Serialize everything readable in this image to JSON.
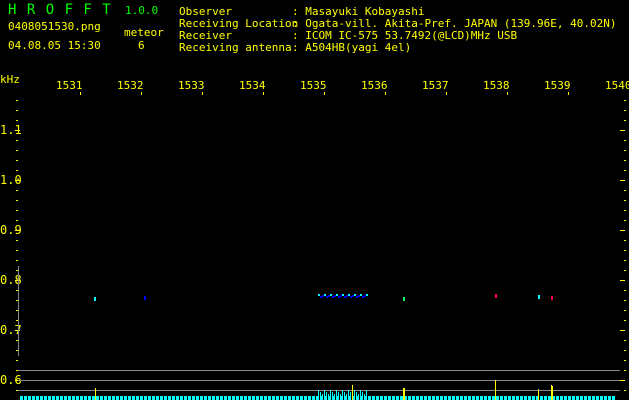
{
  "app": {
    "title": "H R O F F T",
    "version": "1.0.0"
  },
  "file": {
    "name": "0408051530.png",
    "datetime": "04.08.05 15:30",
    "meteor_label": "meteor",
    "meteor_count": "6"
  },
  "info": [
    {
      "label": "Observer",
      "value": ": Masayuki Kobayashi"
    },
    {
      "label": "Receiving Location",
      "value": ": Ogata-vill. Akita-Pref. JAPAN (139.96E, 40.02N)"
    },
    {
      "label": "Receiver",
      "value": ": ICOM IC-575 53.7492(@LCD)MHz USB"
    },
    {
      "label": "Receiving antenna",
      "value": ": A504HB(yagi 4el)"
    }
  ],
  "axes": {
    "x_unit": "kHz",
    "x_ticks": [
      "1531",
      "1532",
      "1533",
      "1534",
      "1535",
      "1536",
      "1537",
      "1538",
      "1539",
      "1540"
    ],
    "y_ticks": [
      "1.1",
      "1.0",
      "0.9",
      "0.8",
      "0.7",
      "0.6"
    ]
  },
  "colors": {
    "text": "#ffff00",
    "title": "#00ff00",
    "signal": "#00ffff",
    "weak": "#0000ff"
  }
}
